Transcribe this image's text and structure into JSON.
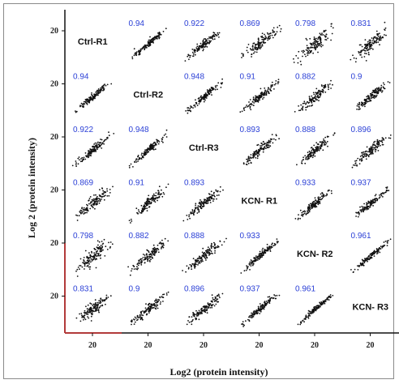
{
  "chart_data": {
    "type": "scatter",
    "xlabel": "Log2 (protein intensity)",
    "ylabel": "Log 2 (protein intensity)",
    "samples": [
      "Ctrl-R1",
      "Ctrl-R2",
      "Ctrl-R3",
      "KCN- R1",
      "KCN- R2",
      "KCN- R3"
    ],
    "x_ticks": [
      "20",
      "20",
      "20",
      "20",
      "20",
      "20"
    ],
    "y_ticks": [
      "20",
      "20",
      "20",
      "20",
      "20",
      "20"
    ],
    "correlations": [
      [
        null,
        "0.94",
        "0.922",
        "0.869",
        "0.798",
        "0.831"
      ],
      [
        "0.94",
        null,
        "0.948",
        "0.91",
        "0.882",
        "0.9"
      ],
      [
        "0.922",
        "0.948",
        null,
        "0.893",
        "0.888",
        "0.896"
      ],
      [
        "0.869",
        "0.91",
        "0.893",
        null,
        "0.933",
        "0.937"
      ],
      [
        "0.798",
        "0.882",
        "0.888",
        "0.933",
        null,
        "0.961"
      ],
      [
        "0.831",
        "0.9",
        "0.896",
        "0.937",
        "0.961",
        null
      ]
    ],
    "colors": {
      "points": "#111111",
      "correlation_text": "#2a3fd6",
      "axis": "#111111",
      "axis_accent": "#b23a3a"
    }
  }
}
